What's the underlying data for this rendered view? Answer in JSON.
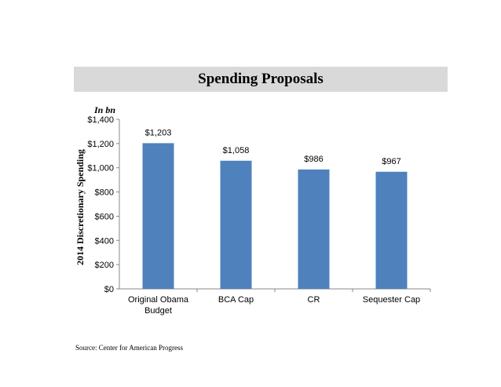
{
  "header": {
    "title": "Spending Proposals",
    "unit_note": "In bn"
  },
  "footer": {
    "source": "Source: Center for American Progress"
  },
  "chart_data": {
    "type": "bar",
    "ylabel": "2014 Discretionary Spending",
    "categories": [
      [
        "Original Obama",
        "Budget"
      ],
      [
        "BCA Cap"
      ],
      [
        "CR"
      ],
      [
        "Sequester Cap"
      ]
    ],
    "values": [
      1203,
      1058,
      986,
      967
    ],
    "data_labels": [
      "$1,203",
      "$1,058",
      "$986",
      "$967"
    ],
    "ylim": [
      0,
      1400
    ],
    "yticks": [
      0,
      200,
      400,
      600,
      800,
      1000,
      1200,
      1400
    ],
    "ytick_labels": [
      "$0",
      "$200",
      "$400",
      "$600",
      "$800",
      "$1,000",
      "$1,200",
      "$1,400"
    ],
    "bar_color": "#4f81bd",
    "grid": false,
    "legend": "none"
  }
}
